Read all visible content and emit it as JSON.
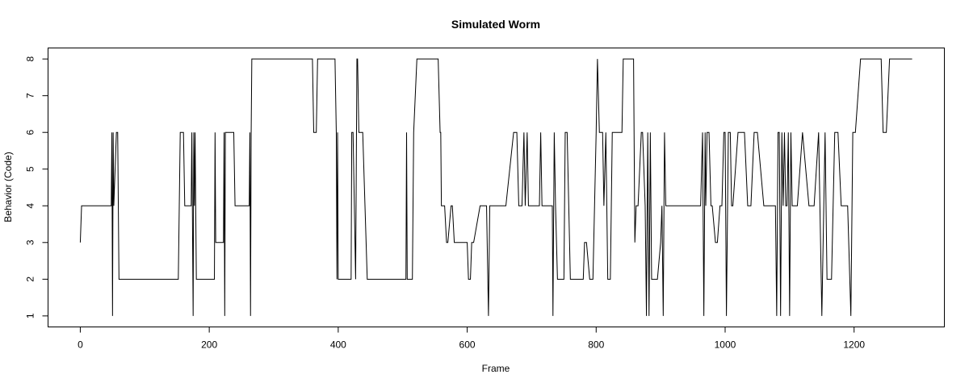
{
  "chart_data": {
    "type": "line",
    "title": "Simulated Worm",
    "xlabel": "Frame",
    "ylabel": "Behavior (Code)",
    "xlim": [
      -50,
      1340
    ],
    "ylim": [
      0.7,
      8.3
    ],
    "xticks": [
      0,
      200,
      400,
      600,
      800,
      1000,
      1200
    ],
    "yticks": [
      1,
      2,
      3,
      4,
      5,
      6,
      7,
      8
    ],
    "grid": false,
    "legend": "none",
    "line_color": "#000000",
    "series": [
      {
        "x": [
          0,
          2,
          48,
          49,
          50,
          51,
          52,
          56,
          58,
          60,
          62,
          78,
          100,
          152,
          155,
          160,
          162,
          172,
          173,
          175,
          176,
          177,
          178,
          180,
          182,
          184,
          208,
          209,
          210,
          222,
          223,
          224,
          225,
          226,
          230,
          238,
          240,
          262,
          263,
          264,
          265,
          266,
          268,
          270,
          272,
          360,
          362,
          366,
          368,
          370,
          373,
          375,
          376,
          395,
          397,
          398,
          399,
          400,
          401,
          402,
          420,
          421,
          423,
          427,
          429,
          430,
          432,
          433,
          435,
          438,
          445,
          447,
          505,
          506,
          507,
          515,
          517,
          522,
          525,
          528,
          555,
          558,
          559,
          560,
          562,
          565,
          568,
          570,
          575,
          577,
          580,
          600,
          602,
          605,
          607,
          610,
          620,
          630,
          633,
          635,
          636,
          638,
          640,
          660,
          672,
          677,
          680,
          685,
          688,
          690,
          693,
          695,
          700,
          712,
          714,
          716,
          730,
          732,
          733,
          735,
          737,
          740,
          750,
          752,
          755,
          760,
          765,
          770,
          780,
          782,
          785,
          790,
          795,
          800,
          802,
          805,
          810,
          812,
          815,
          818,
          822,
          825,
          830,
          840,
          842,
          848,
          858,
          860,
          862,
          865,
          870,
          872,
          876,
          878,
          880,
          882,
          884,
          886,
          888,
          890,
          895,
          900,
          902,
          904,
          906,
          908,
          918,
          932,
          955,
          962,
          965,
          967,
          969,
          970,
          972,
          975,
          978,
          980,
          985,
          988,
          992,
          995,
          998,
          1000,
          1002,
          1005,
          1008,
          1010,
          1012,
          1020,
          1030,
          1035,
          1040,
          1045,
          1050,
          1060,
          1070,
          1078,
          1080,
          1082,
          1084,
          1086,
          1088,
          1090,
          1092,
          1094,
          1096,
          1098,
          1100,
          1102,
          1104,
          1106,
          1108,
          1112,
          1120,
          1130,
          1138,
          1145,
          1150,
          1155,
          1158,
          1162,
          1165,
          1170,
          1175,
          1180,
          1185,
          1190,
          1195,
          1198,
          1200,
          1202,
          1210,
          1218,
          1230,
          1242,
          1245,
          1250,
          1255,
          1262,
          1270,
          1280,
          1290
        ],
        "y": [
          3,
          4,
          4,
          6,
          1,
          6,
          4,
          6,
          6,
          2,
          2,
          2,
          2,
          2,
          6,
          6,
          4,
          4,
          6,
          1,
          6,
          4,
          6,
          2,
          2,
          2,
          2,
          6,
          3,
          3,
          6,
          1,
          6,
          6,
          6,
          6,
          4,
          4,
          6,
          1,
          6,
          8,
          8,
          8,
          8,
          8,
          6,
          6,
          8,
          8,
          8,
          8,
          8,
          8,
          6,
          2,
          6,
          2,
          2,
          2,
          2,
          6,
          6,
          2,
          8,
          8,
          6,
          6,
          6,
          6,
          2,
          2,
          2,
          6,
          2,
          2,
          6,
          8,
          8,
          8,
          8,
          6,
          6,
          4,
          4,
          4,
          3,
          3,
          4,
          4,
          3,
          3,
          2,
          2,
          3,
          3,
          4,
          4,
          1,
          4,
          4,
          4,
          4,
          4,
          6,
          6,
          4,
          4,
          6,
          4,
          6,
          4,
          4,
          4,
          6,
          4,
          4,
          4,
          1,
          6,
          4,
          2,
          2,
          6,
          6,
          2,
          2,
          2,
          2,
          3,
          3,
          2,
          2,
          6,
          8,
          6,
          6,
          4,
          6,
          2,
          2,
          6,
          6,
          6,
          8,
          8,
          8,
          3,
          4,
          4,
          6,
          6,
          4,
          1,
          6,
          1,
          6,
          2,
          2,
          2,
          2,
          3,
          4,
          1,
          6,
          4,
          4,
          4,
          4,
          4,
          6,
          1,
          6,
          4,
          6,
          6,
          4,
          4,
          3,
          3,
          4,
          4,
          6,
          6,
          1,
          6,
          6,
          4,
          4,
          6,
          6,
          4,
          4,
          6,
          6,
          4,
          4,
          4,
          1,
          6,
          6,
          1,
          6,
          4,
          6,
          4,
          4,
          6,
          1,
          6,
          4,
          4,
          4,
          4,
          6,
          4,
          4,
          6,
          1,
          6,
          2,
          2,
          2,
          6,
          6,
          4,
          4,
          4,
          1,
          6,
          6,
          6,
          8,
          8,
          8,
          8,
          6,
          6,
          8,
          8,
          8,
          8,
          8
        ]
      }
    ]
  }
}
